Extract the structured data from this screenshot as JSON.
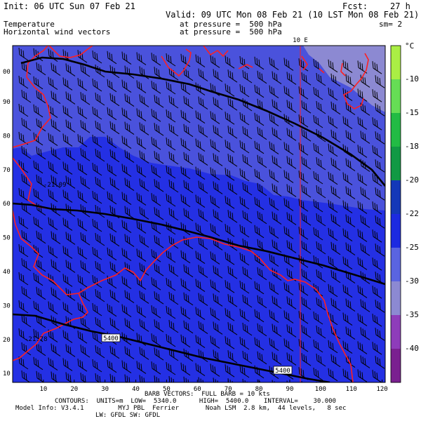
{
  "header": {
    "init": "Init: 06 UTC Sun 07 Feb 21",
    "fcst_label": "Fcst:",
    "fcst_value": "27 h",
    "valid": "Valid: 09 UTC Mon 08 Feb 21 (10 LST Mon 08 Feb 21)",
    "field1": "Temperature",
    "field1_level": "at pressure =  500 hPa",
    "field2": "Horizontal wind vectors",
    "field2_level": "at pressure =  500 hPa",
    "smooth": "sm= 2"
  },
  "map": {
    "meridian_label": "10 E",
    "x_ticks": [
      "10",
      "20",
      "30",
      "40",
      "50",
      "60",
      "70",
      "80",
      "90",
      "100",
      "110",
      "120"
    ],
    "y_ticks": [
      "90",
      "80",
      "70",
      "60",
      "50",
      "40",
      "30",
      "20",
      "10",
      "00"
    ],
    "contour_labels": [
      "5400",
      "5400"
    ],
    "min_labels": [
      "-21.09",
      "-21.78"
    ],
    "colors": {
      "band_lightest": "#8c89d2",
      "band_mid": "#4a52dc",
      "band_main": "#2430e4",
      "coast": "#ff2020",
      "contour": "#000000"
    }
  },
  "colorbar": {
    "unit": "°C",
    "ticks": [
      "-10",
      "-15",
      "-18",
      "-20",
      "-22",
      "-25",
      "-30",
      "-35",
      "-40"
    ],
    "colors": [
      "#aaee44",
      "#66dd55",
      "#22bb44",
      "#119944",
      "#1438b8",
      "#1c2ae0",
      "#5a64e0",
      "#8c89d2",
      "#8e3cba",
      "#7a2090"
    ]
  },
  "footer": {
    "line1": "BARB VECTORS:  FULL BARB = 10 kts",
    "line2": "CONTOURS:  UNITS=m  LOW=  5340.0      HIGH=  5400.0    INTERVAL=    30.000",
    "line3": "Model Info: V3.4.1         MYJ PBL  Ferrier       Noah LSM  2.8 km,  44 levels,   8 sec",
    "line4": "LW: GFDL SW: GFDL"
  }
}
